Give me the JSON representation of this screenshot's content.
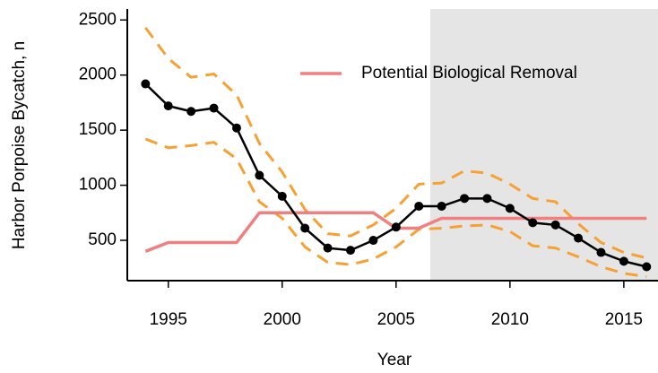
{
  "chart_data": {
    "type": "line",
    "x_label": "Year",
    "y_label": "Harbor Porpoise Bycatch, n",
    "xlim": [
      1993.2,
      2016.5
    ],
    "ylim": [
      134,
      2600
    ],
    "xticks": [
      1995,
      2000,
      2005,
      2010,
      2015
    ],
    "yticks": [
      500,
      1000,
      1500,
      2000,
      2500
    ],
    "shaded_xrange": [
      2006.5,
      2016.5
    ],
    "shade_color": "#e5e5e5",
    "x": [
      1994,
      1995,
      1996,
      1997,
      1998,
      1999,
      2000,
      2001,
      2002,
      2003,
      2004,
      2005,
      2006,
      2007,
      2008,
      2009,
      2010,
      2011,
      2012,
      2013,
      2014,
      2015,
      2016
    ],
    "series": [
      {
        "color": "#f7a033",
        "dash": true,
        "markers": false,
        "values": [
          2430,
          2150,
          1980,
          2010,
          1820,
          1380,
          1120,
          780,
          560,
          540,
          640,
          790,
          1010,
          1020,
          1130,
          1110,
          1010,
          880,
          850,
          650,
          480,
          390,
          340
        ]
      },
      {
        "color": "#f7a033",
        "dash": true,
        "markers": false,
        "values": [
          1420,
          1340,
          1360,
          1390,
          1240,
          850,
          700,
          440,
          300,
          280,
          330,
          440,
          600,
          610,
          630,
          640,
          580,
          450,
          430,
          350,
          260,
          200,
          170
        ]
      },
      {
        "name": "Potential Biological Removal",
        "color": "#f08080",
        "dash": false,
        "markers": false,
        "values": [
          400,
          480,
          480,
          480,
          480,
          750,
          750,
          750,
          750,
          750,
          750,
          610,
          610,
          700,
          700,
          700,
          700,
          700,
          700,
          700,
          700,
          700,
          700
        ]
      },
      {
        "color": "#000000",
        "dash": false,
        "markers": true,
        "values": [
          1920,
          1720,
          1670,
          1700,
          1520,
          1090,
          900,
          610,
          430,
          410,
          500,
          620,
          810,
          810,
          880,
          880,
          790,
          660,
          640,
          520,
          390,
          310,
          260
        ]
      }
    ]
  }
}
